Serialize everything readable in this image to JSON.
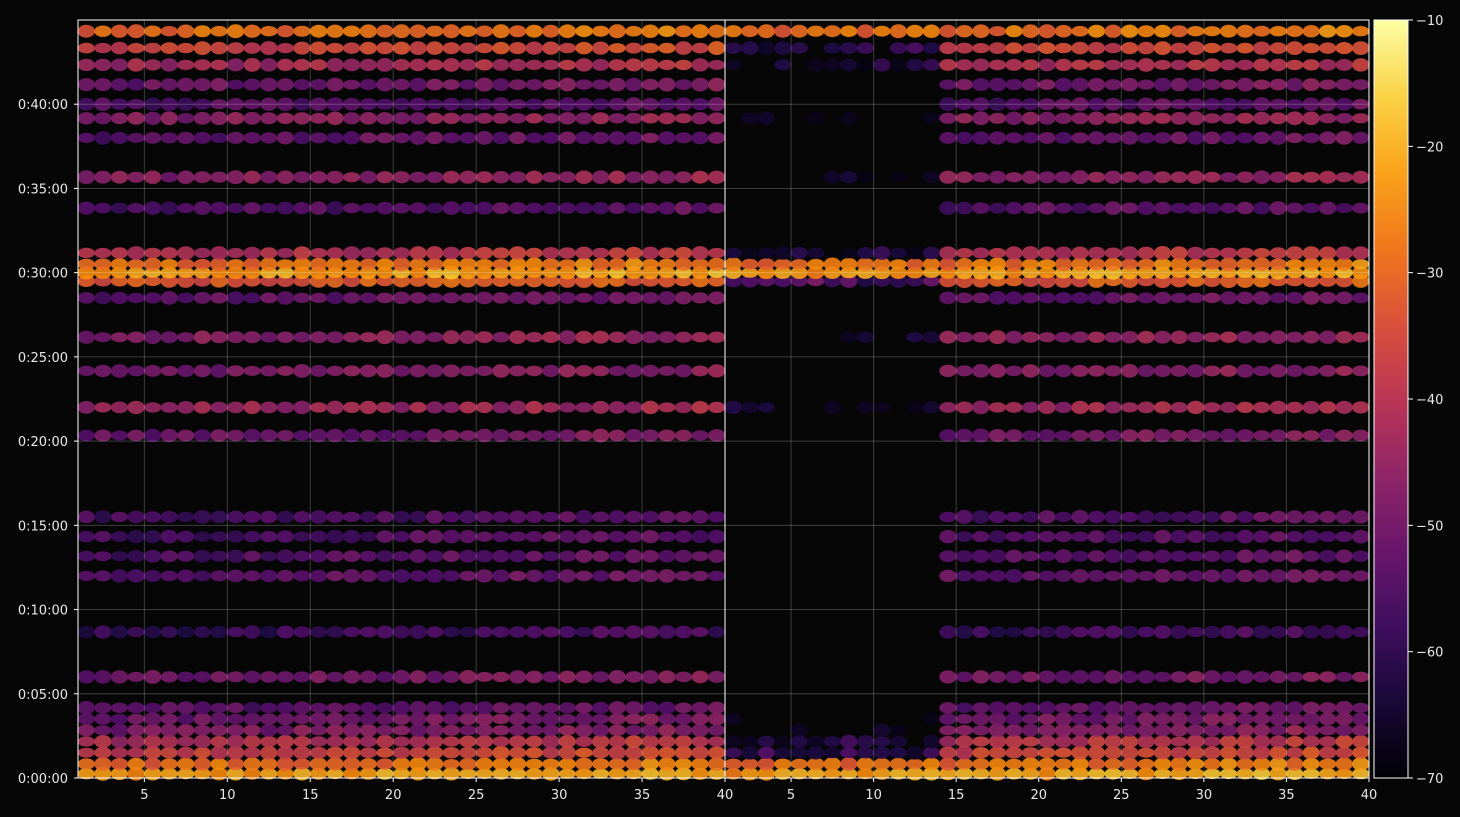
{
  "chart_data": {
    "type": "heatmap",
    "title": "",
    "xlabel": "",
    "ylabel": "",
    "colormap": "inferno",
    "background": "#060606",
    "grid": true,
    "panels": [
      {
        "name": "",
        "xlim": [
          1,
          40
        ],
        "xticks": [
          5,
          10,
          15,
          20,
          25,
          30,
          35,
          40
        ],
        "xtick_labels": [
          "5",
          "10",
          "15",
          "20",
          "25",
          "30",
          "35",
          "40"
        ],
        "variant": "full"
      },
      {
        "name": "",
        "xlim": [
          1,
          40
        ],
        "xticks": [
          5,
          10,
          15,
          20,
          25,
          30,
          35,
          40
        ],
        "xtick_labels": [
          "5",
          "10",
          "15",
          "20",
          "25",
          "30",
          "35",
          "40"
        ],
        "variant": "masked"
      }
    ],
    "ylim_seconds": [
      0,
      2700
    ],
    "yticks_seconds": [
      0,
      300,
      600,
      900,
      1200,
      1500,
      1800,
      2100,
      2400
    ],
    "ytick_labels": [
      "0:00:00",
      "0:05:00",
      "0:10:00",
      "0:15:00",
      "0:20:00",
      "0:25:00",
      "0:30:00",
      "0:35:00",
      "0:40:00"
    ],
    "colorbar": {
      "min": -70,
      "max": -10,
      "ticks": [
        -10,
        -20,
        -30,
        -40,
        -50,
        -60,
        -70
      ],
      "tick_labels": [
        "−10",
        "−20",
        "−30",
        "−40",
        "−50",
        "−60",
        "−70"
      ]
    },
    "bands": [
      {
        "t_seconds": 15,
        "level_dB": -24
      },
      {
        "t_seconds": 50,
        "level_dB": -30
      },
      {
        "t_seconds": 90,
        "level_dB": -38
      },
      {
        "t_seconds": 130,
        "level_dB": -42
      },
      {
        "t_seconds": 170,
        "level_dB": -50
      },
      {
        "t_seconds": 210,
        "level_dB": -52
      },
      {
        "t_seconds": 250,
        "level_dB": -55
      },
      {
        "t_seconds": 360,
        "level_dB": -52
      },
      {
        "t_seconds": 520,
        "level_dB": -60
      },
      {
        "t_seconds": 720,
        "level_dB": -54
      },
      {
        "t_seconds": 790,
        "level_dB": -56
      },
      {
        "t_seconds": 860,
        "level_dB": -57
      },
      {
        "t_seconds": 930,
        "level_dB": -57
      },
      {
        "t_seconds": 1220,
        "level_dB": -52
      },
      {
        "t_seconds": 1320,
        "level_dB": -46
      },
      {
        "t_seconds": 1450,
        "level_dB": -50
      },
      {
        "t_seconds": 1570,
        "level_dB": -48
      },
      {
        "t_seconds": 1710,
        "level_dB": -54
      },
      {
        "t_seconds": 1770,
        "level_dB": -34
      },
      {
        "t_seconds": 1800,
        "level_dB": -24
      },
      {
        "t_seconds": 1830,
        "level_dB": -30
      },
      {
        "t_seconds": 1870,
        "level_dB": -42
      },
      {
        "t_seconds": 2030,
        "level_dB": -56
      },
      {
        "t_seconds": 2140,
        "level_dB": -48
      },
      {
        "t_seconds": 2280,
        "level_dB": -54
      },
      {
        "t_seconds": 2350,
        "level_dB": -48
      },
      {
        "t_seconds": 2400,
        "level_dB": -56
      },
      {
        "t_seconds": 2470,
        "level_dB": -52
      },
      {
        "t_seconds": 2540,
        "level_dB": -44
      },
      {
        "t_seconds": 2600,
        "level_dB": -38
      },
      {
        "t_seconds": 2660,
        "level_dB": -30
      }
    ]
  }
}
